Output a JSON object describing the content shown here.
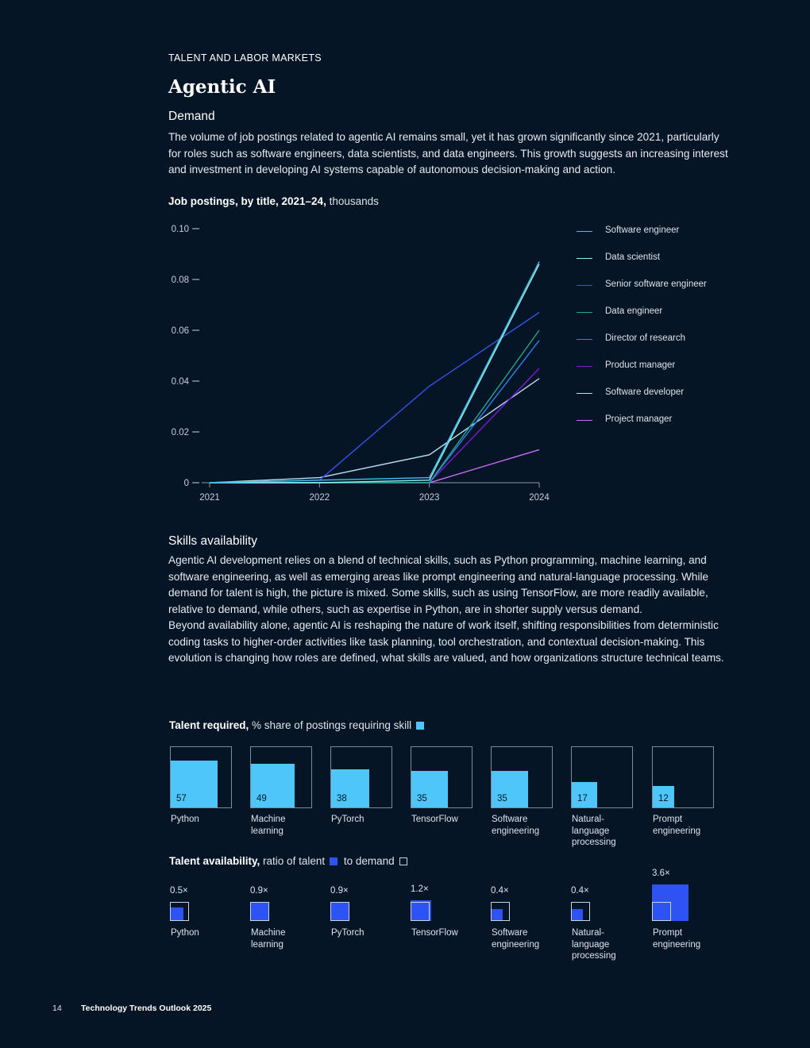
{
  "header": {
    "section_label": "TALENT AND LABOR MARKETS",
    "title": "Agentic AI"
  },
  "demand": {
    "heading": "Demand",
    "text": "The volume of job postings related to agentic AI remains small, yet it has grown significantly since 2021, particularly for roles such as software engineers, data scientists, and data engineers. This growth suggests an increasing interest and investment in developing AI systems capable of autonomous decision-making and action."
  },
  "chart_title": {
    "bold": "Job postings, by title, 2021–24,",
    "unit": " thousands"
  },
  "chart_data": {
    "type": "line",
    "title": "Job postings, by title, 2021–24, thousands",
    "x": [
      "2021",
      "2022",
      "2023",
      "2024"
    ],
    "ylim": [
      0,
      0.1
    ],
    "yticks": [
      "0",
      "0.02",
      "0.04",
      "0.06",
      "0.08",
      "0.10"
    ],
    "grid": false,
    "legend_position": "right",
    "series": [
      {
        "name": "Software engineer",
        "color": "#3cc2f5",
        "values": [
          0,
          0.001,
          0.002,
          0.087
        ]
      },
      {
        "name": "Data scientist",
        "color": "#8ff0e4",
        "values": [
          0,
          0,
          0.001,
          0.086
        ]
      },
      {
        "name": "Senior software engineer",
        "color": "#3254ef",
        "values": [
          0,
          0.001,
          0.038,
          0.067
        ]
      },
      {
        "name": "Data engineer",
        "color": "#1fa88a",
        "values": [
          0,
          0,
          0,
          0.06
        ]
      },
      {
        "name": "Director of research",
        "color": "#2f7df0",
        "values": [
          0,
          0,
          0,
          0.056
        ]
      },
      {
        "name": "Product manager",
        "color": "#7a1bd6",
        "values": [
          0,
          0,
          0,
          0.045
        ]
      },
      {
        "name": "Software developer",
        "color": "#b9def5",
        "values": [
          0,
          0.002,
          0.011,
          0.041
        ]
      },
      {
        "name": "Project manager",
        "color": "#c96df5",
        "values": [
          0,
          0,
          0,
          0.013
        ]
      }
    ]
  },
  "skills": {
    "heading": "Skills availability",
    "para1": "Agentic AI development relies on a blend of technical skills, such as Python programming, machine learning, and software engineering, as well as emerging areas like prompt engineering and natural-language processing. While demand for talent is high, the picture is mixed. Some skills, such as using TensorFlow, are more readily available, relative to demand, while others, such as expertise in Python, are in shorter supply versus demand.",
    "para2": "Beyond availability alone, agentic AI is reshaping the nature of work itself, shifting responsibilities from deterministic coding tasks to higher-order activities like task planning, tool orchestration, and contextual decision-making. This evolution is changing how roles are defined, what skills are valued, and how organizations structure technical teams."
  },
  "talent_required": {
    "title_bold": "Talent required,",
    "title_rest": " % share of postings requiring skill",
    "color": "#4fc6f9",
    "items": [
      {
        "label": "Python",
        "value": 57,
        "display": "57"
      },
      {
        "label": "Machine learning",
        "value": 49,
        "display": "49"
      },
      {
        "label": "PyTorch",
        "value": 38,
        "display": "38"
      },
      {
        "label": "TensorFlow",
        "value": 35,
        "display": "35"
      },
      {
        "label": "Software engineering",
        "value": 35,
        "display": "35"
      },
      {
        "label": "Natural-language processing",
        "value": 17,
        "display": "17"
      },
      {
        "label": "Prompt engineering",
        "value": 12,
        "display": "12"
      }
    ]
  },
  "talent_availability": {
    "title_bold": "Talent availability,",
    "title_rest": " ratio of talent",
    "title_mid": " to demand",
    "fill_color": "#2e53f5",
    "items": [
      {
        "label": "Python",
        "ratio": 0.5,
        "display": "0.5×"
      },
      {
        "label": "Machine learning",
        "ratio": 0.9,
        "display": "0.9×"
      },
      {
        "label": "PyTorch",
        "ratio": 0.9,
        "display": "0.9×"
      },
      {
        "label": "TensorFlow",
        "ratio": 1.2,
        "display": "1.2×"
      },
      {
        "label": "Software engineering",
        "ratio": 0.4,
        "display": "0.4×"
      },
      {
        "label": "Natural-language processing",
        "ratio": 0.4,
        "display": "0.4×"
      },
      {
        "label": "Prompt engineering",
        "ratio": 3.6,
        "display": "3.6×"
      }
    ]
  },
  "footer": {
    "page_number": "14",
    "publication": "Technology Trends Outlook 2025"
  }
}
